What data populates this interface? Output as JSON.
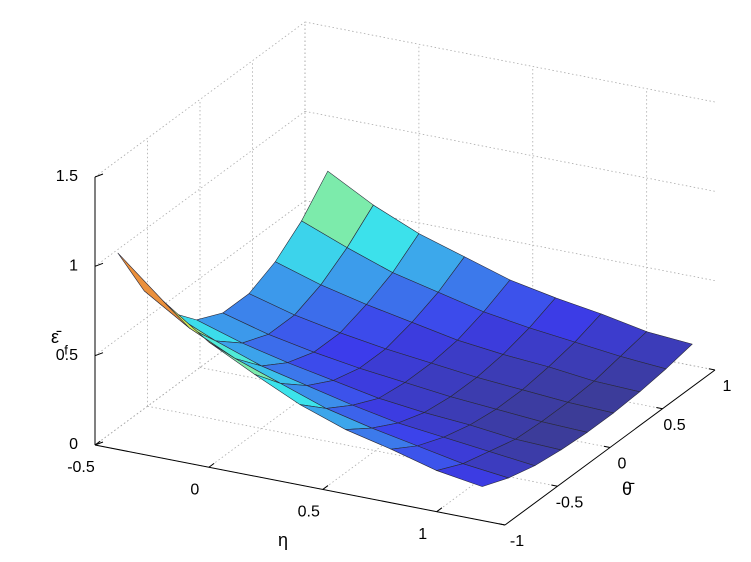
{
  "chart_data": {
    "type": "surface",
    "xlabel": "η",
    "ylabel": "θ̄",
    "zlabel": "ε̄",
    "zlabel_sub": "f",
    "x": [
      -0.4,
      -0.2,
      0,
      0.2,
      0.4,
      0.6,
      0.8,
      1,
      1.2
    ],
    "y": [
      -1,
      -0.75,
      -0.5,
      -0.25,
      0,
      0.25,
      0.5,
      0.75,
      1
    ],
    "z": [
      [
        1.1,
        0.78,
        0.55,
        0.4,
        0.33,
        0.33,
        0.4,
        0.52,
        0.69
      ],
      [
        0.88,
        0.62,
        0.44,
        0.32,
        0.26,
        0.26,
        0.32,
        0.42,
        0.55
      ],
      [
        0.7,
        0.5,
        0.35,
        0.26,
        0.21,
        0.21,
        0.26,
        0.33,
        0.44
      ],
      [
        0.57,
        0.41,
        0.29,
        0.21,
        0.17,
        0.17,
        0.21,
        0.27,
        0.36
      ],
      [
        0.45,
        0.32,
        0.23,
        0.16,
        0.14,
        0.14,
        0.16,
        0.21,
        0.28
      ],
      [
        0.36,
        0.26,
        0.18,
        0.13,
        0.11,
        0.11,
        0.13,
        0.17,
        0.23
      ],
      [
        0.3,
        0.21,
        0.15,
        0.11,
        0.09,
        0.09,
        0.11,
        0.14,
        0.19
      ],
      [
        0.23,
        0.16,
        0.12,
        0.08,
        0.07,
        0.07,
        0.08,
        0.11,
        0.14
      ],
      [
        0.19,
        0.13,
        0.09,
        0.07,
        0.06,
        0.06,
        0.07,
        0.09,
        0.12
      ]
    ],
    "xlim": [
      -0.5,
      1.3
    ],
    "ylim": [
      -1,
      1
    ],
    "zlim": [
      0,
      1.5
    ],
    "xticks": [
      -0.5,
      0,
      0.5,
      1
    ],
    "yticks": [
      -1,
      -0.5,
      0,
      0.5,
      1
    ],
    "zticks": [
      0,
      0.5,
      1,
      1.5
    ],
    "grid": true,
    "colormap": "jet"
  }
}
